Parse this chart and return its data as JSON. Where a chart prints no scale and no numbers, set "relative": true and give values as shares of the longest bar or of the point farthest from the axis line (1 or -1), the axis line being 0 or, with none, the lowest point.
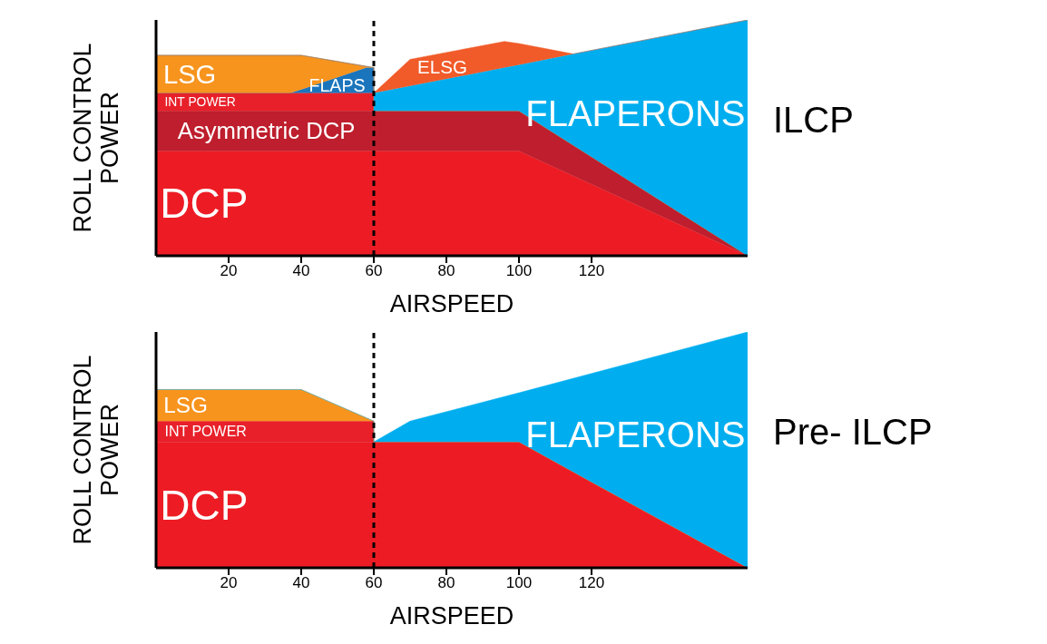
{
  "chart_data": [
    {
      "type": "area",
      "annotations": [
        "ILCP"
      ],
      "xlabel": "AIRSPEED",
      "ylabel": "ROLL CONTROL\nPOWER",
      "relative": true,
      "stacked": true,
      "xlim": [
        0,
        163
      ],
      "xticks": [
        20,
        40,
        60,
        80,
        100,
        120
      ],
      "x": [
        0,
        37,
        40,
        58,
        60,
        60,
        70,
        96,
        100,
        115,
        163
      ],
      "series": [
        {
          "name": "DCP",
          "color": "#ed1c24",
          "values": [
            0.444,
            0.444,
            0.444,
            0.444,
            0.444,
            0.444,
            0.444,
            0.444,
            0.444,
            0.338,
            0
          ]
        },
        {
          "name": "Asymmetric DCP",
          "color": "#be1e2d",
          "values": [
            0.17,
            0.17,
            0.17,
            0.17,
            0.17,
            0.17,
            0.17,
            0.17,
            0.17,
            0.13,
            0
          ]
        },
        {
          "name": "INT POWER",
          "color": "#e8202a",
          "values": [
            0.076,
            0.076,
            0.076,
            0.076,
            0.076,
            0,
            0,
            0,
            0,
            0,
            0
          ]
        },
        {
          "name": "FLAPS",
          "color": "#1b75bc",
          "values": [
            0,
            0,
            0.015,
            0.108,
            0.108,
            0,
            0,
            0,
            0,
            0,
            0
          ]
        },
        {
          "name": "LSG",
          "color": "#f7941d",
          "values": [
            0.16,
            0.16,
            0.145,
            0.005,
            0,
            0,
            0,
            0,
            0,
            0,
            0
          ]
        },
        {
          "name": "FLAPERONS",
          "color": "#00aeef",
          "values": [
            0,
            0,
            0,
            0,
            0,
            0.076,
            0.106,
            0.184,
            0.196,
            0.388,
            1
          ]
        },
        {
          "name": "ELSG",
          "color": "#f15a29",
          "values": [
            0,
            0,
            0,
            0,
            0,
            0,
            0.113,
            0.111,
            0.09,
            0,
            0
          ]
        }
      ],
      "ref_lines": [
        {
          "axis": "x",
          "value": 60,
          "color": "#000000",
          "line_style": "dashed"
        }
      ]
    },
    {
      "type": "area",
      "annotations": [
        "Pre- ILCP"
      ],
      "xlabel": "AIRSPEED",
      "ylabel": "ROLL CONTROL\nPOWER",
      "relative": true,
      "stacked": true,
      "xlim": [
        0,
        163
      ],
      "xticks": [
        20,
        40,
        60,
        80,
        100,
        120
      ],
      "x": [
        0,
        40,
        60,
        60,
        70,
        100,
        120,
        163
      ],
      "series": [
        {
          "name": "DCP",
          "color": "#ed1c24",
          "values": [
            0.534,
            0.534,
            0.534,
            0.534,
            0.534,
            0.534,
            0.363,
            0
          ]
        },
        {
          "name": "INT POWER",
          "color": "#e8202a",
          "values": [
            0.088,
            0.088,
            0.088,
            0,
            0,
            0,
            0,
            0
          ]
        },
        {
          "name": "LSG",
          "color": "#f7941d",
          "values": [
            0.134,
            0.134,
            0,
            0,
            0,
            0,
            0,
            0
          ]
        },
        {
          "name": "FLAPERONS",
          "color": "#00aeef",
          "values": [
            0,
            0,
            0,
            0,
            0.088,
            0.208,
            0.461,
            1
          ]
        }
      ],
      "ref_lines": [
        {
          "axis": "x",
          "value": 60,
          "color": "#000000",
          "line_style": "dashed"
        }
      ]
    }
  ]
}
